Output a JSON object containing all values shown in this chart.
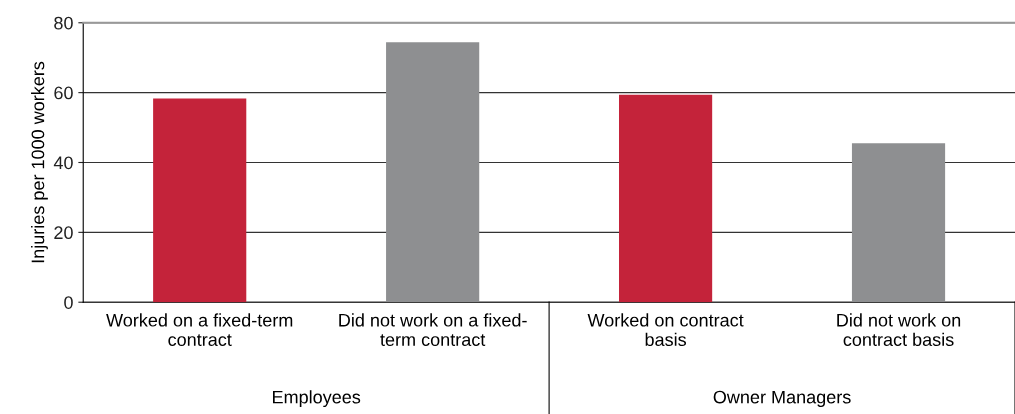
{
  "chart_data": {
    "type": "bar",
    "ylabel": "Injuries per 1000 workers",
    "categories": [
      "Worked on a fixed-term\ncontract",
      "Did not work on a fixed-\nterm contract",
      "Worked on contract\nbasis",
      "Did not work on\ncontract basis"
    ],
    "values": [
      58.3,
      74.4,
      59.4,
      45.5
    ],
    "colors": [
      "#c4233a",
      "#8e8f91",
      "#c4233a",
      "#8e8f91"
    ],
    "ylim": [
      0,
      80
    ],
    "yticks": [
      0,
      20,
      40,
      60,
      80
    ],
    "grid": "y",
    "legend": false,
    "annotations": [
      "Employees",
      "Owner Managers"
    ]
  }
}
